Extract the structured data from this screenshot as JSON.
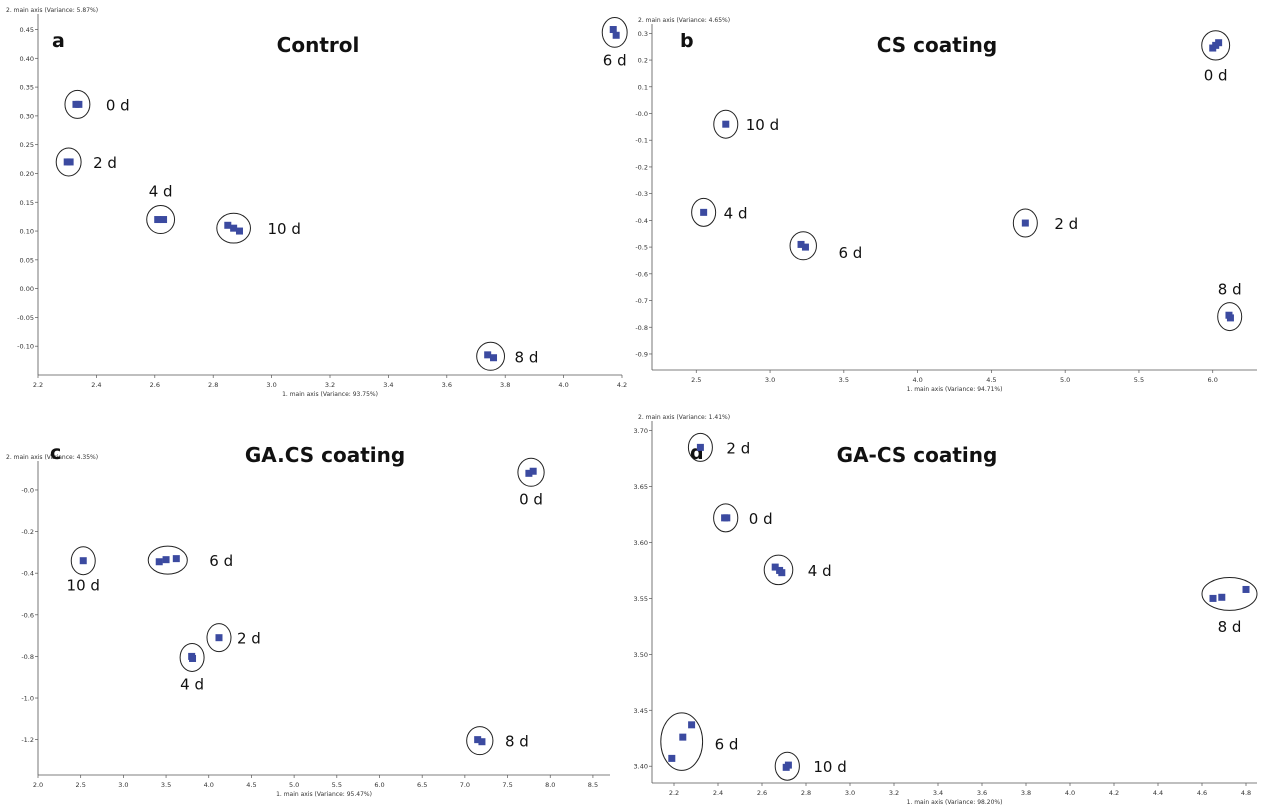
{
  "chart_data": [
    {
      "type": "scatter",
      "letter": "a",
      "title": "Control",
      "xlabel": "1. main axis (Variance: 93.75%)",
      "ylabel": "2. main axis (Variance: 5.87%)",
      "xlim": [
        2.2,
        4.2
      ],
      "ylim": [
        -0.15,
        0.47
      ],
      "xticks": [
        2.2,
        2.4,
        2.6,
        2.8,
        3.0,
        3.2,
        3.4,
        3.6,
        3.8,
        4.0,
        4.2
      ],
      "yticks": [
        -0.1,
        -0.05,
        0.0,
        0.05,
        0.1,
        0.15,
        0.2,
        0.25,
        0.3,
        0.35,
        0.4,
        0.45
      ],
      "groups": [
        {
          "label": "0 d",
          "points": [
            [
              2.33,
              0.32
            ],
            [
              2.34,
              0.32
            ]
          ]
        },
        {
          "label": "2 d",
          "points": [
            [
              2.3,
              0.22
            ],
            [
              2.31,
              0.22
            ]
          ]
        },
        {
          "label": "4 d",
          "points": [
            [
              2.61,
              0.12
            ],
            [
              2.63,
              0.12
            ]
          ]
        },
        {
          "label": "10 d",
          "points": [
            [
              2.85,
              0.11
            ],
            [
              2.87,
              0.105
            ],
            [
              2.89,
              0.1
            ]
          ]
        },
        {
          "label": "6 d",
          "points": [
            [
              4.17,
              0.45
            ],
            [
              4.18,
              0.44
            ]
          ]
        },
        {
          "label": "8 d",
          "points": [
            [
              3.74,
              -0.115
            ],
            [
              3.76,
              -0.12
            ]
          ]
        }
      ]
    },
    {
      "type": "scatter",
      "letter": "b",
      "title": "CS coating",
      "xlabel": "1. main axis (Variance: 94.71%)",
      "ylabel": "2. main axis (Variance: 4.65%)",
      "xlim": [
        2.2,
        6.3
      ],
      "ylim": [
        -0.96,
        0.32
      ],
      "xticks": [
        2.5,
        3.0,
        3.5,
        4.0,
        4.5,
        5.0,
        5.5,
        6.0
      ],
      "yticks": [
        0.3,
        0.2,
        0.1,
        0.0,
        -0.1,
        -0.2,
        -0.3,
        -0.4,
        -0.5,
        -0.6,
        -0.7,
        -0.8,
        -0.9
      ],
      "ytick_labels": [
        "0.3",
        "0.2",
        "0.1",
        "-0.0",
        "-0.1",
        "-0.2",
        "-0.3",
        "-0.4",
        "-0.5",
        "-0.6",
        "-0.7",
        "-0.8",
        "-0.9"
      ],
      "groups": [
        {
          "label": "0 d",
          "points": [
            [
              6.0,
              0.245
            ],
            [
              6.02,
              0.255
            ],
            [
              6.04,
              0.265
            ]
          ]
        },
        {
          "label": "10 d",
          "points": [
            [
              2.7,
              -0.04
            ]
          ]
        },
        {
          "label": "4 d",
          "points": [
            [
              2.55,
              -0.37
            ]
          ]
        },
        {
          "label": "6 d",
          "points": [
            [
              3.21,
              -0.49
            ],
            [
              3.24,
              -0.5
            ]
          ]
        },
        {
          "label": "2 d",
          "points": [
            [
              4.73,
              -0.41
            ]
          ]
        },
        {
          "label": "8 d",
          "points": [
            [
              6.11,
              -0.755
            ],
            [
              6.12,
              -0.765
            ]
          ]
        }
      ]
    },
    {
      "type": "scatter",
      "letter": "c",
      "title": "GA.CS coating",
      "xlabel": "1. main axis (Variance: 95.47%)",
      "ylabel": "2. main axis (Variance: 4.35%)",
      "xlim": [
        2.0,
        8.7
      ],
      "ylim": [
        -1.37,
        0.12
      ],
      "xticks": [
        2.0,
        2.5,
        3.0,
        3.5,
        4.0,
        4.5,
        5.0,
        5.5,
        6.0,
        6.5,
        7.0,
        7.5,
        8.0,
        8.5
      ],
      "yticks": [
        0.0,
        -0.2,
        -0.4,
        -0.6,
        -0.8,
        -1.0,
        -1.2
      ],
      "ytick_labels": [
        "-0.0",
        "-0.2",
        "-0.4",
        "-0.6",
        "-0.8",
        "-1.0",
        "-1.2"
      ],
      "groups": [
        {
          "label": "0 d",
          "points": [
            [
              7.75,
              0.08
            ],
            [
              7.8,
              0.09
            ]
          ]
        },
        {
          "label": "10 d",
          "points": [
            [
              2.53,
              -0.34
            ]
          ]
        },
        {
          "label": "6 d",
          "points": [
            [
              3.42,
              -0.345
            ],
            [
              3.5,
              -0.335
            ],
            [
              3.62,
              -0.33
            ]
          ]
        },
        {
          "label": "2 d",
          "points": [
            [
              4.12,
              -0.71
            ]
          ]
        },
        {
          "label": "4 d",
          "points": [
            [
              3.8,
              -0.8
            ],
            [
              3.81,
              -0.81
            ]
          ]
        },
        {
          "label": "8 d",
          "points": [
            [
              7.15,
              -1.2
            ],
            [
              7.2,
              -1.21
            ]
          ]
        }
      ]
    },
    {
      "type": "scatter",
      "letter": "d",
      "title": "GA-CS coating",
      "xlabel": "1. main axis (Variance: 98.20%)",
      "ylabel": "2. main axis (Variance: 1.41%)",
      "xlim": [
        2.1,
        4.85
      ],
      "ylim": [
        3.385,
        3.705
      ],
      "xticks": [
        2.2,
        2.4,
        2.6,
        2.8,
        3.0,
        3.2,
        3.4,
        3.6,
        3.8,
        4.0,
        4.2,
        4.4,
        4.6,
        4.8
      ],
      "yticks": [
        3.7,
        3.65,
        3.6,
        3.55,
        3.5,
        3.45,
        3.4
      ],
      "ytick_labels": [
        "3.70",
        "3.65",
        "3.60",
        "3.55",
        "3.50",
        "3.45",
        "3.40"
      ],
      "groups": [
        {
          "label": "2 d",
          "points": [
            [
              2.32,
              3.685
            ]
          ]
        },
        {
          "label": "0 d",
          "points": [
            [
              2.43,
              3.622
            ],
            [
              2.44,
              3.622
            ]
          ]
        },
        {
          "label": "4 d",
          "points": [
            [
              2.66,
              3.578
            ],
            [
              2.68,
              3.575
            ],
            [
              2.69,
              3.573
            ]
          ]
        },
        {
          "label": "8 d",
          "points": [
            [
              4.65,
              3.55
            ],
            [
              4.69,
              3.551
            ],
            [
              4.8,
              3.558
            ]
          ]
        },
        {
          "label": "6 d",
          "points": [
            [
              2.19,
              3.407
            ],
            [
              2.24,
              3.426
            ],
            [
              2.28,
              3.437
            ]
          ]
        },
        {
          "label": "10 d",
          "points": [
            [
              2.71,
              3.399
            ],
            [
              2.72,
              3.401
            ]
          ]
        }
      ]
    }
  ],
  "colors": {
    "marker": "#3b4aa0",
    "axis": "#555555",
    "ellipse": "#222222"
  }
}
